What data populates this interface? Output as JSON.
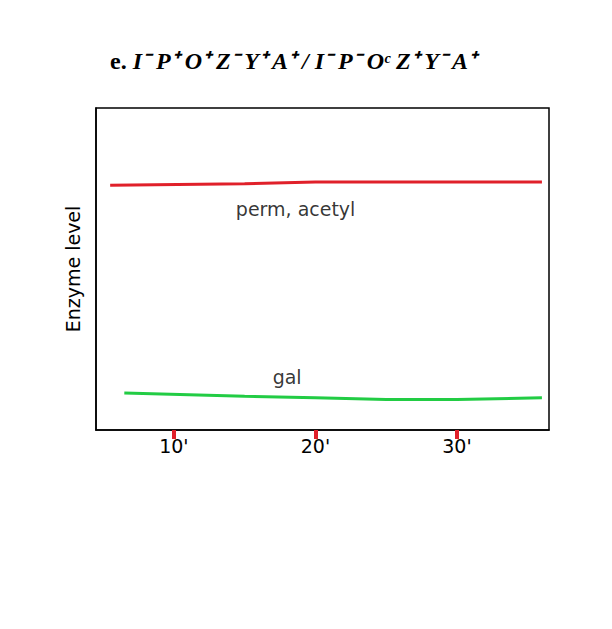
{
  "chart_data": {
    "type": "line",
    "title": "e. I⁻ P⁺ O⁺ Z⁻ Y⁺ A⁺ / I⁻ P⁻ Oᶜ Z⁺ Y⁻ A⁺",
    "y_label": "Enzyme level",
    "xlim": [
      4.5,
      36.5
    ],
    "xticks": [
      {
        "value": 10,
        "label": "10'"
      },
      {
        "value": 20,
        "label": "20'"
      },
      {
        "value": 30,
        "label": "30'"
      }
    ],
    "ylim": [
      0,
      100
    ],
    "tick_labels": "x",
    "grid": false,
    "series": [
      {
        "color": "#e0202a",
        "x": [
          5.5,
          15,
          20,
          25,
          30,
          36
        ],
        "values": [
          76,
          76.5,
          77,
          77,
          77,
          77
        ]
      },
      {
        "color": "#22cc44",
        "x": [
          6.5,
          15,
          20,
          25,
          30,
          36
        ],
        "values": [
          11.5,
          10.5,
          10,
          9.5,
          9.5,
          10
        ]
      }
    ],
    "annotations": [
      {
        "text": "perm, acetyl",
        "x": 18.6,
        "y": 68.6
      },
      {
        "text": "gal",
        "x": 18.0,
        "y": 16.5
      }
    ]
  }
}
